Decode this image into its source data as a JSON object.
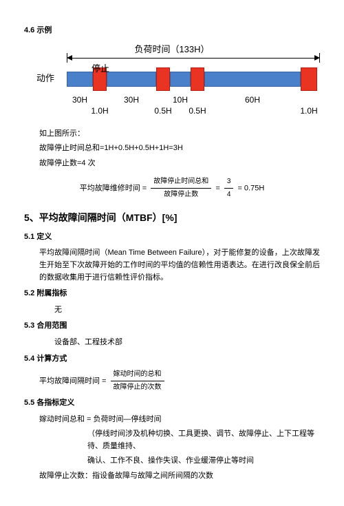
{
  "sections": {
    "s46": "4.6 示例",
    "s5": "5、平均故障间隔时间（MTBF）[%]",
    "s51": "5.1 定义",
    "s52": "5.2 附属指标",
    "s53": "5.3 合用范围",
    "s54": "5.4 计算方式",
    "s55": "5.5 各指标定义"
  },
  "diagram": {
    "top_caption": "负荷时间（133H）",
    "lead_label": "动作",
    "stop_label": "停止",
    "segments": [
      {
        "kind": "lead",
        "w": 62
      },
      {
        "kind": "blue",
        "w": 38,
        "under": "30H"
      },
      {
        "kind": "red",
        "w": 20,
        "bottom": "1.0H"
      },
      {
        "kind": "blue",
        "w": 72,
        "under": "30H"
      },
      {
        "kind": "red",
        "w": 20,
        "bottom": "0.5H"
      },
      {
        "kind": "blue",
        "w": 30,
        "under": "10H"
      },
      {
        "kind": "red",
        "w": 20,
        "bottom": "0.5H"
      },
      {
        "kind": "blue",
        "w": 140,
        "under": "60H"
      },
      {
        "kind": "red",
        "w": 24,
        "bottom": "1.0H"
      }
    ],
    "colors": {
      "blue": "#4a7fc9",
      "red": "#e93323",
      "bg": "#ffffff"
    }
  },
  "example_text": {
    "line1": "如上图所示：",
    "line2": "故障停止时间总和=1H+0.5H+0.5H+1H=3H",
    "line3": "故障停止数=4 次"
  },
  "formula1": {
    "lhs": "平均故障维修时间 =",
    "num": "故障停止时间总和",
    "den": "故障停止数",
    "eq2_num": "3",
    "eq2_den": "4",
    "result": "= 0.75H"
  },
  "def51": "平均故障间隔时间（Mean Time Between Failure），对于能修复的设备，上次故障发生开始至下次故障开始的工作时间的平均值的信赖性用语表达。在进行改良保全前后的数据收集用于进行信赖性评价指标。",
  "v52": "无",
  "v53": "设备部、工程技术部",
  "formula2": {
    "lhs": "平均故障间隔时间 =",
    "num": "嫁动时间的总和",
    "den": "故障停止的次数"
  },
  "def55": {
    "l1": "嫁动时间总和  =  负荷时间—停线时间",
    "l2": "（停线时间涉及机种切换、工具更换、调节、故障停止、上下工程等待、质量维持、",
    "l3": "确认、工作不良、操作失误、作业缓滞停止等时间",
    "l4": "故障停止次数：指设备故障与故障之间所间隔的次数"
  }
}
